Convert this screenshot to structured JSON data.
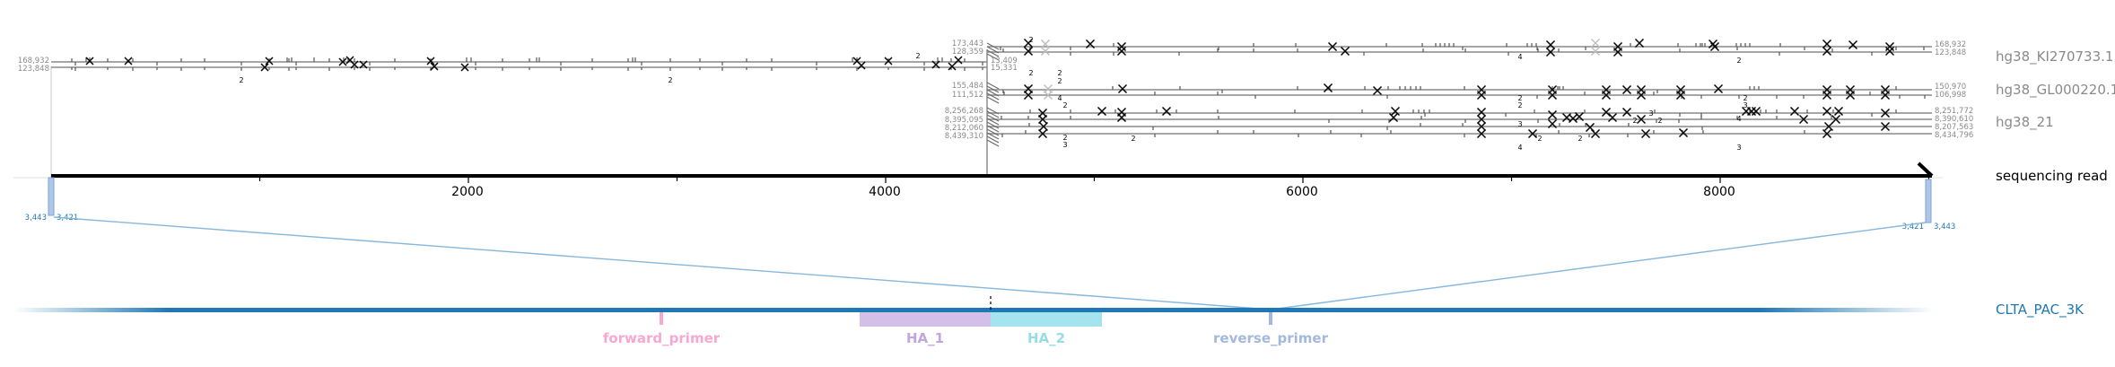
{
  "reference_labels": {
    "ki": "hg38_KI270733.1",
    "gl": "hg38_GL000220.1",
    "chr21": "hg38_21"
  },
  "read_label": "sequencing read",
  "target_label": "CLTA_PAC_3K",
  "axis_ticks": [
    "0",
    "2000",
    "4000",
    "6000",
    "8000"
  ],
  "left_block_coords": {
    "top": "168,932",
    "bottom": "123,848"
  },
  "middle_block_coords": {
    "ki": {
      "left_top": "173,443",
      "left_bottom": "128,359",
      "right_top": "13,409",
      "right_bottom": "15,331"
    },
    "gl": {
      "left_top": "155,484",
      "left_bottom": "111,512"
    },
    "chr21": {
      "left": [
        "8,256,268",
        "8,395,095",
        "8,212,060",
        "8,439,310"
      ]
    }
  },
  "right_block_coords": {
    "ki": {
      "top": "168,932",
      "bottom": "123,848"
    },
    "gl": {
      "top": "150,970",
      "bottom": "106,998"
    },
    "chr21": [
      "8,251,772",
      "8,390,610",
      "8,207,563",
      "8,434,796"
    ]
  },
  "read_anchor_labels": {
    "left": [
      "3,443",
      "3,421"
    ],
    "right": [
      "3,421",
      "3,443"
    ]
  },
  "feature_labels": {
    "forward_primer": "forward_primer",
    "ha1": "HA_1",
    "ha2": "HA_2",
    "reverse_primer": "reverse_primer"
  },
  "count_labels": [
    "2",
    "2",
    "2",
    "2",
    "2",
    "2",
    "2",
    "4",
    "2",
    "3",
    "2",
    "2",
    "4",
    "2",
    "2",
    "3",
    "2",
    "4",
    "2",
    "2",
    "2",
    "2",
    "3",
    "4",
    "3",
    "2",
    "3"
  ],
  "colors": {
    "reference_line": "#888888",
    "read_line": "#000000",
    "target_blue": "#1f77b4",
    "anchor_blue": "#aec7e8",
    "forward_primer": "#f7a8d0",
    "ha1": "#d4bfe9",
    "ha2": "#a3e4ef",
    "reverse_primer": "#a4b8dd",
    "ha1_text": "#c3a5e0",
    "ha2_text": "#95dce8",
    "reverse_text": "#a4b8dd"
  }
}
